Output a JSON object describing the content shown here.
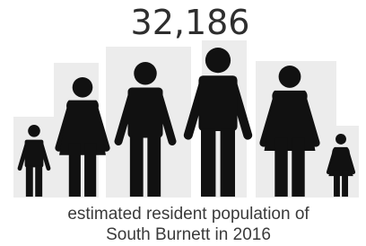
{
  "headline": {
    "value": "32,186"
  },
  "caption": {
    "line1": "estimated resident population of",
    "line2": "South Burnett in 2016"
  }
}
